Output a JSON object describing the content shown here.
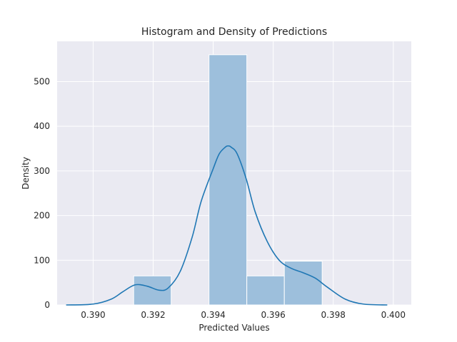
{
  "chart_data": {
    "type": "bar",
    "title": "Histogram and Density of Predictions",
    "xlabel": "Predicted Values",
    "ylabel": "Density",
    "xlim": [
      0.3888,
      0.4006
    ],
    "ylim": [
      0,
      590
    ],
    "xticks": [
      0.39,
      0.392,
      0.394,
      0.396,
      0.398,
      0.4
    ],
    "xtick_labels": [
      "0.390",
      "0.392",
      "0.394",
      "0.396",
      "0.398",
      "0.400"
    ],
    "yticks": [
      0,
      100,
      200,
      300,
      400,
      500
    ],
    "ytick_labels": [
      "0",
      "100",
      "200",
      "300",
      "400",
      "500"
    ],
    "grid": true,
    "histogram": {
      "bins": [
        {
          "x0": 0.39135,
          "x1": 0.3926,
          "value": 65
        },
        {
          "x0": 0.3926,
          "x1": 0.39386,
          "value": 0
        },
        {
          "x0": 0.39386,
          "x1": 0.39512,
          "value": 560
        },
        {
          "x0": 0.39512,
          "x1": 0.39637,
          "value": 65
        },
        {
          "x0": 0.39637,
          "x1": 0.39763,
          "value": 98
        }
      ],
      "color": "#9dbfdc"
    },
    "density": {
      "color": "#1f77b4",
      "x": [
        0.3891,
        0.39,
        0.3906,
        0.391,
        0.3914,
        0.3918,
        0.3922,
        0.3925,
        0.3929,
        0.3933,
        0.3936,
        0.394,
        0.3942,
        0.3944,
        0.3945,
        0.3946,
        0.3948,
        0.3951,
        0.3954,
        0.3958,
        0.3962,
        0.3966,
        0.397,
        0.3974,
        0.3978,
        0.3984,
        0.399,
        0.3998
      ],
      "y": [
        0,
        2,
        13,
        30,
        45,
        42,
        33,
        38,
        75,
        152,
        232,
        305,
        338,
        353,
        356,
        353,
        338,
        282,
        208,
        142,
        100,
        82,
        72,
        60,
        40,
        13,
        2,
        0
      ]
    },
    "colors": {
      "background": "#eaeaf2",
      "grid": "#ffffff",
      "text": "#262626"
    }
  }
}
